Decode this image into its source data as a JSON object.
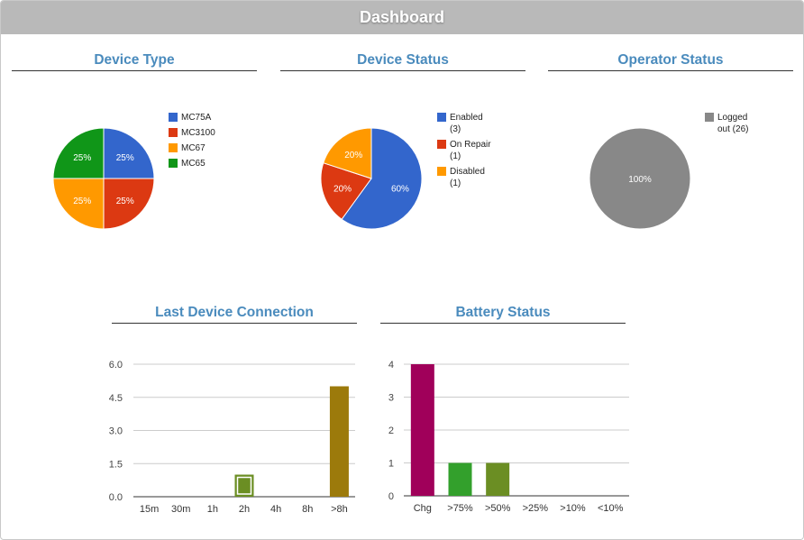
{
  "header": {
    "title": "Dashboard"
  },
  "panels": {
    "device_type": {
      "title": "Device Type"
    },
    "device_status": {
      "title": "Device Status"
    },
    "operator_status": {
      "title": "Operator Status"
    },
    "last_connection": {
      "title": "Last Device Connection"
    },
    "battery_status": {
      "title": "Battery Status"
    }
  },
  "chart_data": [
    {
      "id": "device_type",
      "type": "pie",
      "title": "Device Type",
      "labels": [
        "MC75A",
        "MC3100",
        "MC67",
        "MC65"
      ],
      "values": [
        25,
        25,
        25,
        25
      ],
      "slice_labels": [
        "25%",
        "25%",
        "25%",
        "25%"
      ],
      "colors": [
        "#3366cc",
        "#dc3912",
        "#ff9900",
        "#109618"
      ],
      "legend": "right"
    },
    {
      "id": "device_status",
      "type": "pie",
      "title": "Device Status",
      "labels": [
        "Enabled (3)",
        "On Repair (1)",
        "Disabled (1)"
      ],
      "values": [
        3,
        1,
        1
      ],
      "slice_labels": [
        "60%",
        "20%",
        "20%"
      ],
      "colors": [
        "#3366cc",
        "#dc3912",
        "#ff9900"
      ],
      "legend": "right"
    },
    {
      "id": "operator_status",
      "type": "pie",
      "title": "Operator Status",
      "labels": [
        "Logged out (26)"
      ],
      "values": [
        26
      ],
      "slice_labels": [
        "100%"
      ],
      "colors": [
        "#888888"
      ],
      "legend": "right"
    },
    {
      "id": "last_connection",
      "type": "bar",
      "title": "Last Device Connection",
      "categories": [
        "15m",
        "30m",
        "1h",
        "2h",
        "4h",
        "8h",
        ">8h"
      ],
      "values": [
        0,
        0,
        0,
        1,
        0,
        0,
        5
      ],
      "colors": [
        "#6b8e23",
        "#6b8e23",
        "#6b8e23",
        "#6b8e23",
        "#9c7a0b",
        "#9c7a0b",
        "#9c7a0b"
      ],
      "ylim": [
        0,
        6
      ],
      "yticks": [
        "0.0",
        "1.5",
        "3.0",
        "4.5",
        "6.0"
      ],
      "ytick_values": [
        0,
        1.5,
        3,
        4.5,
        6
      ],
      "grid": true,
      "highlighted_category": "2h"
    },
    {
      "id": "battery_status",
      "type": "bar",
      "title": "Battery Status",
      "categories": [
        "Chg",
        ">75%",
        ">50%",
        ">25%",
        ">10%",
        "<10%"
      ],
      "values": [
        4,
        1,
        1,
        0,
        0,
        0
      ],
      "colors": [
        "#a0005a",
        "#33a02c",
        "#6b8e23",
        "#6b8e23",
        "#6b8e23",
        "#6b8e23"
      ],
      "ylim": [
        0,
        4
      ],
      "yticks": [
        "0",
        "1",
        "2",
        "3",
        "4"
      ],
      "ytick_values": [
        0,
        1,
        2,
        3,
        4
      ],
      "grid": true
    }
  ]
}
